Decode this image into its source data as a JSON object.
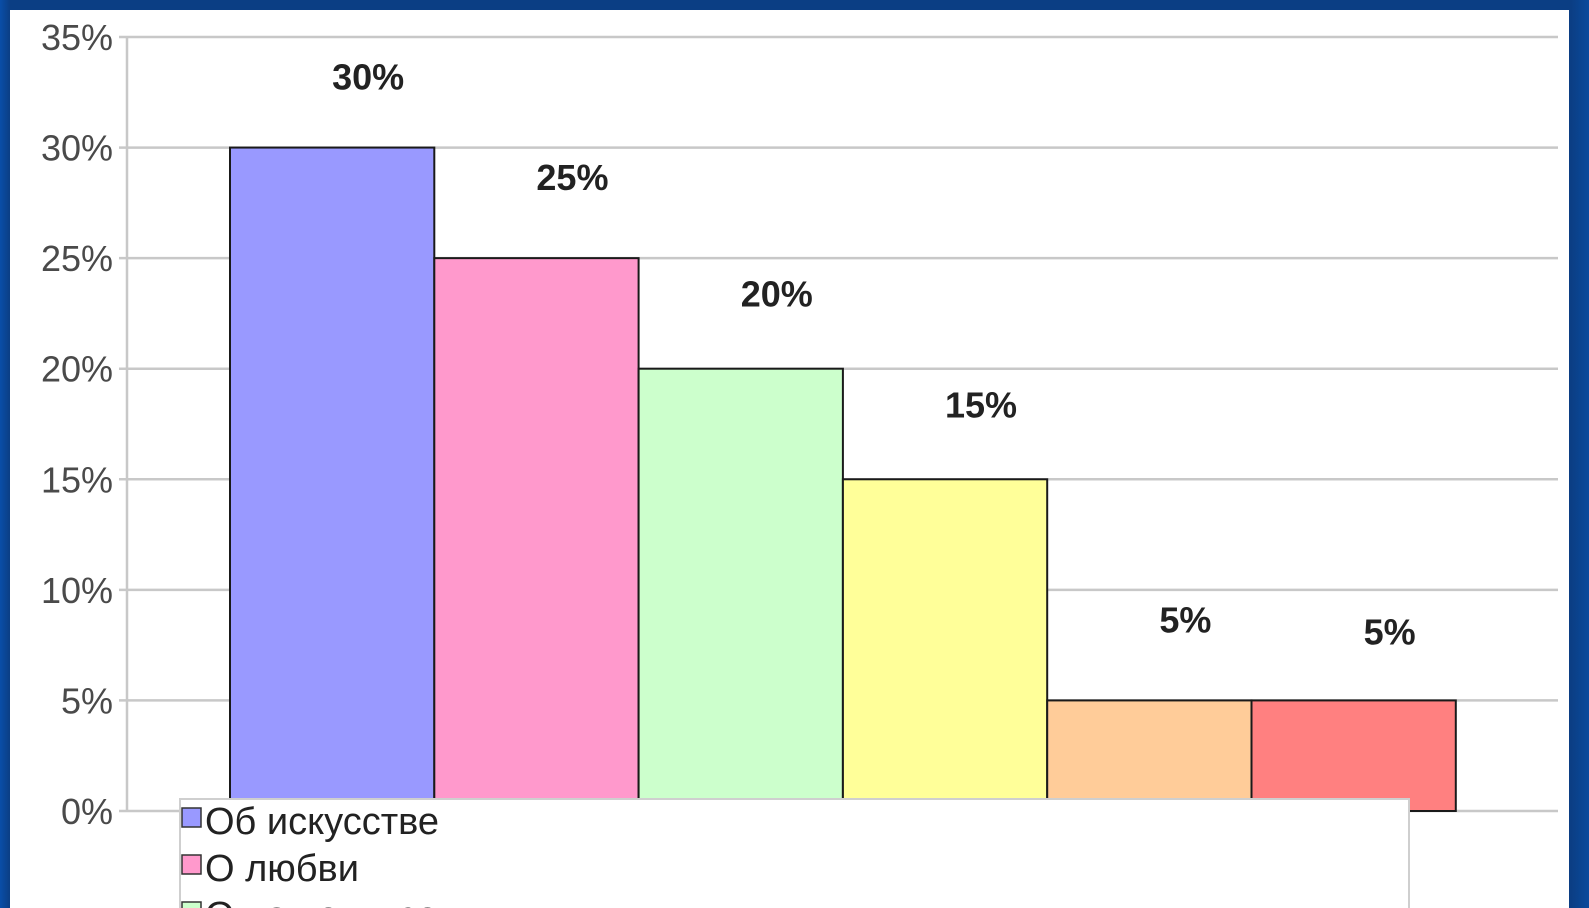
{
  "chart_data": {
    "type": "bar",
    "categories": [
      "Об искусстве",
      "О любви",
      "О нашем врем",
      "",
      "",
      ""
    ],
    "values": [
      30,
      25,
      20,
      15,
      5,
      5
    ],
    "data_labels": [
      "30%",
      "25%",
      "20%",
      "15%",
      "5%",
      "5%"
    ],
    "colors": [
      "#9999ff",
      "#ff99cc",
      "#ccffcc",
      "#ffff99",
      "#ffcc99",
      "#ff8080"
    ],
    "ylim": [
      0,
      35
    ],
    "yticks": [
      0,
      5,
      10,
      15,
      20,
      25,
      30,
      35
    ],
    "ytick_labels": [
      "0%",
      "5%",
      "10%",
      "15%",
      "20%",
      "25%",
      "30%",
      "35%"
    ],
    "grid": true,
    "legend": {
      "placement": "bottom-left",
      "entries": [
        {
          "label": "Об искусстве",
          "color": "#9999ff"
        },
        {
          "label": "О любви",
          "color": "#ff99cc"
        },
        {
          "label": "О нашем врем",
          "color": "#ccffcc"
        }
      ]
    },
    "title": "",
    "xlabel": "",
    "ylabel": ""
  }
}
